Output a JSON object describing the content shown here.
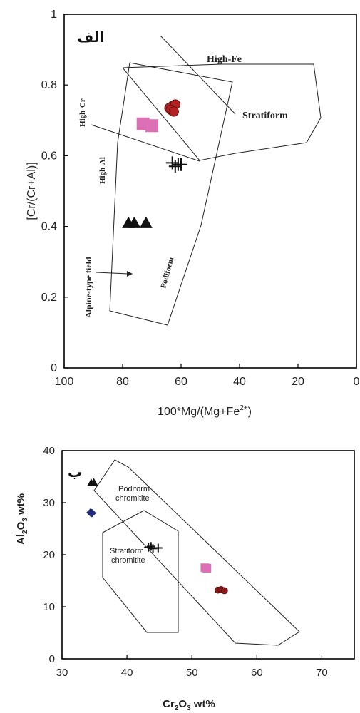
{
  "chart_data": [
    {
      "type": "scatter",
      "panel_label": "الف",
      "xlabel": "100*Mg/(Mg+Fe",
      "xlabel_sup": "2+",
      "xlabel_close": ")",
      "ylabel": "[Cr/(Cr+Al)]",
      "xlim": [
        100,
        0
      ],
      "ylim": [
        0,
        1
      ],
      "xticks": [
        "100",
        "80",
        "60",
        "40",
        "20",
        "0"
      ],
      "yticks": [
        "0",
        "0.2",
        "0.4",
        "0.6",
        "0.8",
        "1"
      ],
      "field_labels": {
        "high_fe": "High-Fe",
        "stratiform": "Stratiform",
        "high_cr": "High-Cr",
        "high_al": "High-Al",
        "podiform": "Podiform",
        "alpine": "Alpine-type field"
      },
      "series": [
        {
          "marker": "circle",
          "color": "#b22222",
          "points": [
            [
              63,
              0.74
            ],
            [
              64,
              0.735
            ],
            [
              62,
              0.745
            ],
            [
              63.5,
              0.73
            ],
            [
              62.5,
              0.725
            ]
          ]
        },
        {
          "marker": "square",
          "color": "#dd6fb4",
          "points": [
            [
              73,
              0.69
            ],
            [
              70,
              0.685
            ]
          ]
        },
        {
          "marker": "plus",
          "color": "#111111",
          "points": [
            [
              63,
              0.58
            ],
            [
              61,
              0.575
            ],
            [
              62,
              0.57
            ],
            [
              60,
              0.575
            ]
          ]
        },
        {
          "marker": "triangle",
          "color": "#111111",
          "points": [
            [
              78,
              0.41
            ],
            [
              76,
              0.41
            ],
            [
              72,
              0.41
            ]
          ]
        }
      ]
    },
    {
      "type": "scatter",
      "panel_label": "ب",
      "xlabel": "Cr2O3 wt%",
      "ylabel": "Al2O3 wt%",
      "xlim": [
        30,
        75
      ],
      "ylim": [
        0,
        40
      ],
      "xticks": [
        "30",
        "40",
        "50",
        "60",
        "70"
      ],
      "yticks": [
        "0",
        "10",
        "20",
        "30",
        "40"
      ],
      "field_labels": {
        "podiform_1": "Podiform",
        "podiform_2": "chromitite",
        "stratiform_1": "Stratiform",
        "stratiform_2": "chromitite"
      },
      "series": [
        {
          "marker": "triangle",
          "color": "#111111",
          "points": [
            [
              34.5,
              33.8
            ],
            [
              34.9,
              33.9
            ]
          ]
        },
        {
          "marker": "diamond",
          "color": "#1f2a7a",
          "points": [
            [
              34.4,
              28.1
            ],
            [
              34.6,
              28.0
            ]
          ]
        },
        {
          "marker": "plus",
          "color": "#111111",
          "points": [
            [
              43.3,
              21.4
            ],
            [
              44.0,
              21.2
            ],
            [
              44.8,
              21.3
            ],
            [
              43.7,
              21.6
            ]
          ]
        },
        {
          "marker": "square",
          "color": "#dd6fb4",
          "points": [
            [
              52.0,
              17.5
            ],
            [
              52.3,
              17.4
            ]
          ]
        },
        {
          "marker": "circle",
          "color": "#8b1a1a",
          "points": [
            [
              54.0,
              13.2
            ],
            [
              54.5,
              13.3
            ],
            [
              55.0,
              13.1
            ]
          ]
        }
      ]
    }
  ]
}
